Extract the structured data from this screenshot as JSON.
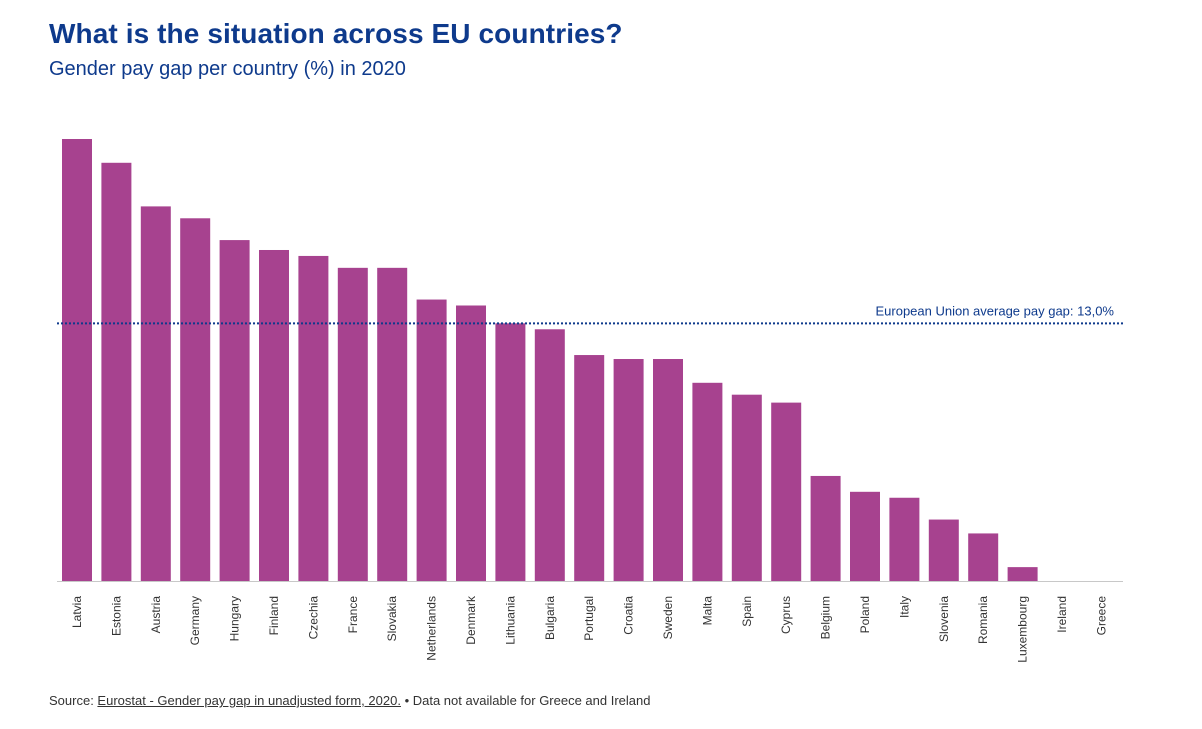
{
  "chart_data": {
    "type": "bar",
    "title": "What is the situation across EU countries?",
    "subtitle": "Gender pay gap per country (%) in 2020",
    "xlabel": "",
    "ylabel": "",
    "ylim": [
      0,
      24
    ],
    "grid": false,
    "bar_color": "#a7428f",
    "reference_line": {
      "value": 13.0,
      "label": "European Union average pay gap: 13,0%",
      "color": "#0e3a8c"
    },
    "categories": [
      "Latvia",
      "Estonia",
      "Austria",
      "Germany",
      "Hungary",
      "Finland",
      "Czechia",
      "France",
      "Slovakia",
      "Netherlands",
      "Denmark",
      "Lithuania",
      "Bulgaria",
      "Portugal",
      "Croatia",
      "Sweden",
      "Malta",
      "Spain",
      "Cyprus",
      "Belgium",
      "Poland",
      "Italy",
      "Slovenia",
      "Romania",
      "Luxembourg",
      "Ireland",
      "Greece"
    ],
    "values": [
      22.3,
      21.1,
      18.9,
      18.3,
      17.2,
      16.7,
      16.4,
      15.8,
      15.8,
      14.2,
      13.9,
      13.0,
      12.7,
      11.4,
      11.2,
      11.2,
      10.0,
      9.4,
      9.0,
      5.3,
      4.5,
      4.2,
      3.1,
      2.4,
      0.7,
      null,
      null
    ]
  },
  "footer": {
    "source_prefix": "Source: ",
    "source_link": "Eurostat - Gender pay gap in unadjusted form, 2020.",
    "note": " • Data not available for Greece and Ireland"
  }
}
